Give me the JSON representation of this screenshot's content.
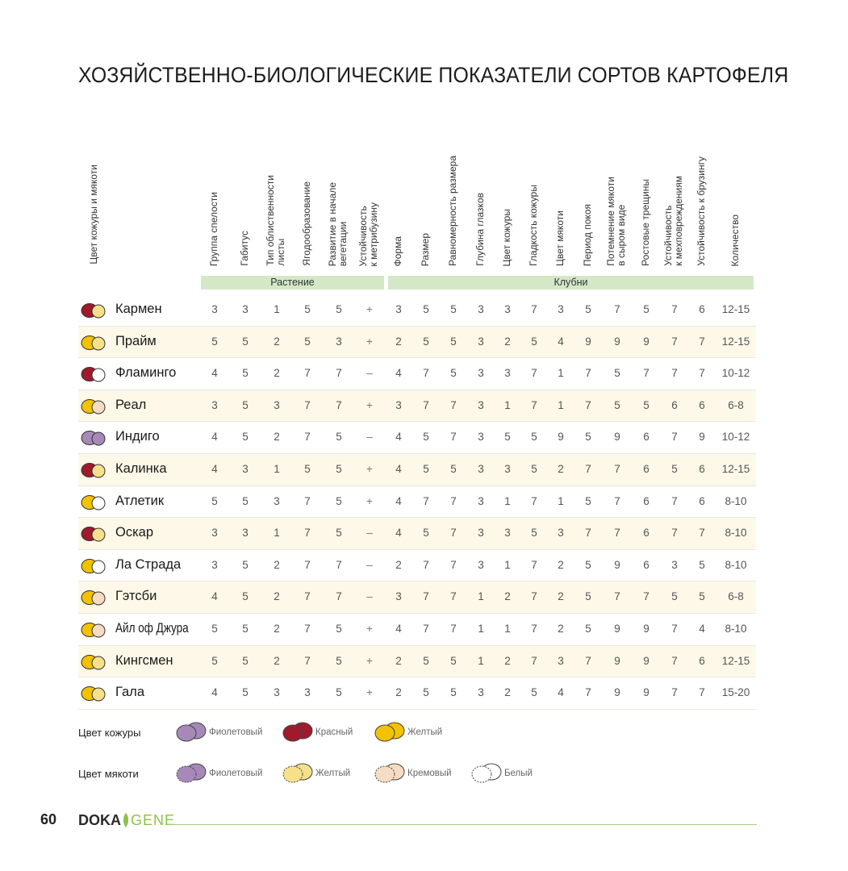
{
  "title": "ХОЗЯЙСТВЕННО-БИОЛОГИЧЕСКИЕ ПОКАЗАТЕЛИ СОРТОВ КАРТОФЕЛЯ",
  "left_header": "Цвет кожуры и мякоти",
  "columns": [
    "Группа спелости",
    "Габитус",
    "Тип облиственности\nлисты",
    "Ягодообразование",
    "Развитие в начале\nвегетации",
    "Устойчивость\nк метрибузину",
    "Форма",
    "Размер",
    "Равномерность размера",
    "Глубина  глазков",
    "Цвет кожуры",
    "Гладкость кожуры",
    "Цвет мякоти",
    "Период покоя",
    "Потемнение мякоти\nв сыром виде",
    "Ростовые трещины",
    "Устойчивость\nк мехповреждениям",
    "Устойчивость к брузингу",
    "Количество"
  ],
  "groups": {
    "plant": "Растение",
    "tubers": "Клубни"
  },
  "colors": {
    "violet": "#a689b8",
    "red": "#a0192c",
    "yellow": "#f2c200",
    "cream": "#f6dcc2",
    "white": "#ffffff",
    "flesh_yellow": "#f6e08a"
  },
  "rows": [
    {
      "name": "Кармен",
      "skin": "red",
      "flesh": "yellow",
      "values": [
        "3",
        "3",
        "1",
        "5",
        "5",
        "+",
        "3",
        "5",
        "5",
        "3",
        "3",
        "7",
        "3",
        "5",
        "7",
        "5",
        "7",
        "6",
        "12-15"
      ]
    },
    {
      "name": "Прайм",
      "skin": "yellow",
      "flesh": "yellow",
      "values": [
        "5",
        "5",
        "2",
        "5",
        "3",
        "+",
        "2",
        "5",
        "5",
        "3",
        "2",
        "5",
        "4",
        "9",
        "9",
        "9",
        "7",
        "7",
        "12-15"
      ]
    },
    {
      "name": "Фламинго",
      "skin": "red",
      "flesh": "white",
      "values": [
        "4",
        "5",
        "2",
        "7",
        "7",
        "–",
        "4",
        "7",
        "5",
        "3",
        "3",
        "7",
        "1",
        "7",
        "5",
        "7",
        "7",
        "7",
        "10-12"
      ]
    },
    {
      "name": "Реал",
      "skin": "yellow",
      "flesh": "cream",
      "values": [
        "3",
        "5",
        "3",
        "7",
        "7",
        "+",
        "3",
        "7",
        "7",
        "3",
        "1",
        "7",
        "1",
        "7",
        "5",
        "5",
        "6",
        "6",
        "6-8"
      ]
    },
    {
      "name": "Индиго",
      "skin": "violet",
      "flesh": "violet",
      "values": [
        "4",
        "5",
        "2",
        "7",
        "5",
        "–",
        "4",
        "5",
        "7",
        "3",
        "5",
        "5",
        "9",
        "5",
        "9",
        "6",
        "7",
        "9",
        "10-12"
      ]
    },
    {
      "name": "Калинка",
      "skin": "red",
      "flesh": "yellow",
      "values": [
        "4",
        "3",
        "1",
        "5",
        "5",
        "+",
        "4",
        "5",
        "5",
        "3",
        "3",
        "5",
        "2",
        "7",
        "7",
        "6",
        "5",
        "6",
        "12-15"
      ]
    },
    {
      "name": "Атлетик",
      "skin": "yellow",
      "flesh": "white",
      "values": [
        "5",
        "5",
        "3",
        "7",
        "5",
        "+",
        "4",
        "7",
        "7",
        "3",
        "1",
        "7",
        "1",
        "5",
        "7",
        "6",
        "7",
        "6",
        "8-10"
      ]
    },
    {
      "name": "Оскар",
      "skin": "red",
      "flesh": "yellow",
      "values": [
        "3",
        "3",
        "1",
        "7",
        "5",
        "–",
        "4",
        "5",
        "7",
        "3",
        "3",
        "5",
        "3",
        "7",
        "7",
        "6",
        "7",
        "7",
        "8-10"
      ]
    },
    {
      "name": "Ла Страда",
      "skin": "yellow",
      "flesh": "white",
      "values": [
        "3",
        "5",
        "2",
        "7",
        "7",
        "–",
        "2",
        "7",
        "7",
        "3",
        "1",
        "7",
        "2",
        "5",
        "9",
        "6",
        "3",
        "5",
        "8-10"
      ]
    },
    {
      "name": "Гэтсби",
      "skin": "yellow",
      "flesh": "cream",
      "values": [
        "4",
        "5",
        "2",
        "7",
        "7",
        "–",
        "3",
        "7",
        "7",
        "1",
        "2",
        "7",
        "2",
        "5",
        "7",
        "7",
        "5",
        "5",
        "6-8"
      ]
    },
    {
      "name": "Айл оф Джура",
      "skin": "yellow",
      "flesh": "cream",
      "values": [
        "5",
        "5",
        "2",
        "7",
        "5",
        "+",
        "4",
        "7",
        "7",
        "1",
        "1",
        "7",
        "2",
        "5",
        "9",
        "9",
        "7",
        "4",
        "8-10"
      ]
    },
    {
      "name": "Кингсмен",
      "skin": "yellow",
      "flesh": "yellow",
      "values": [
        "5",
        "5",
        "2",
        "7",
        "5",
        "+",
        "2",
        "5",
        "5",
        "1",
        "2",
        "7",
        "3",
        "7",
        "9",
        "9",
        "7",
        "6",
        "12-15"
      ]
    },
    {
      "name": "Гала",
      "skin": "yellow",
      "flesh": "yellow",
      "values": [
        "4",
        "5",
        "3",
        "3",
        "5",
        "+",
        "2",
        "5",
        "5",
        "3",
        "2",
        "5",
        "4",
        "7",
        "9",
        "9",
        "7",
        "7",
        "15-20"
      ]
    }
  ],
  "legend": {
    "skin_label": "Цвет кожуры",
    "skin_items": [
      {
        "color": "violet",
        "label": "Фиолетовый"
      },
      {
        "color": "red",
        "label": "Красный"
      },
      {
        "color": "yellow",
        "label": "Желтый"
      }
    ],
    "flesh_label": "Цвет мякоти",
    "flesh_items": [
      {
        "color": "violet",
        "label": "Фиолетовый"
      },
      {
        "color": "flesh_yellow",
        "label": "Желтый"
      },
      {
        "color": "cream",
        "label": "Кремовый"
      },
      {
        "color": "white",
        "label": "Белый"
      }
    ]
  },
  "footer": {
    "page_number": "60",
    "logo_part1": "DOKA",
    "logo_part2": "GENE"
  }
}
